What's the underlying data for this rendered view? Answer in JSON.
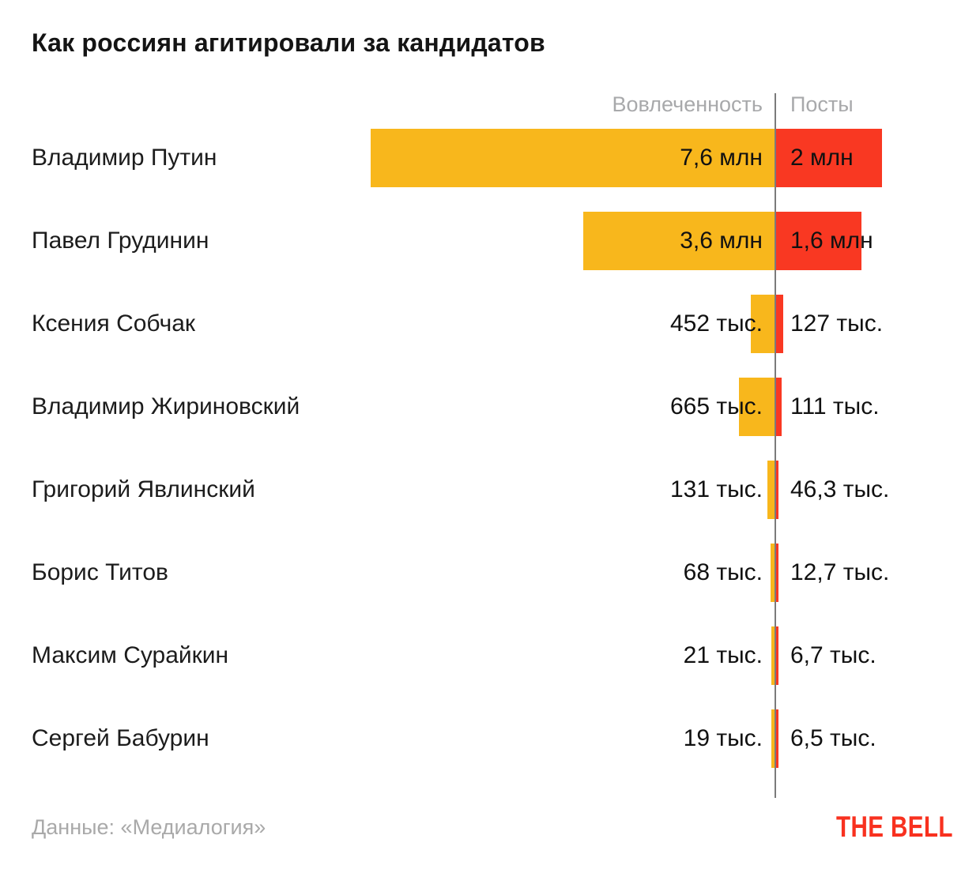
{
  "title": "Как россиян агитировали за кандидатов",
  "columns": {
    "left_label": "Вовлеченность",
    "right_label": "Посты"
  },
  "footer": {
    "source": "Данные: «Медиалогия»",
    "logo": "THE BELL"
  },
  "colors": {
    "engagement_bar": "#F8B71C",
    "posts_bar": "#F93822",
    "divider": "#7b7b7b",
    "header_text": "#a8a9ab",
    "logo_red": "#F8311F"
  },
  "chart_data": {
    "type": "bar",
    "orientation": "bidirectional-horizontal",
    "title": "Как россиян агитировали за кандидатов",
    "unit": "thousands",
    "legend_position": "top",
    "grid": false,
    "series": [
      {
        "name": "Вовлеченность",
        "side": "left",
        "color": "#F8B71C"
      },
      {
        "name": "Посты",
        "side": "right",
        "color": "#F93822"
      }
    ],
    "rows": [
      {
        "candidate": "Владимир Путин",
        "engagement_k": 7600,
        "engagement_label": "7,6 млн",
        "posts_k": 2000,
        "posts_label": "2 млн"
      },
      {
        "candidate": "Павел Грудинин",
        "engagement_k": 3600,
        "engagement_label": "3,6 млн",
        "posts_k": 1600,
        "posts_label": "1,6 млн"
      },
      {
        "candidate": "Ксения Собчак",
        "engagement_k": 452,
        "engagement_label": "452 тыс.",
        "posts_k": 127,
        "posts_label": "127 тыс."
      },
      {
        "candidate": "Владимир Жириновский",
        "engagement_k": 665,
        "engagement_label": "665 тыс.",
        "posts_k": 111,
        "posts_label": "111 тыс."
      },
      {
        "candidate": "Григорий Явлинский",
        "engagement_k": 131,
        "engagement_label": "131 тыс.",
        "posts_k": 46.3,
        "posts_label": "46,3 тыс."
      },
      {
        "candidate": "Борис Титов",
        "engagement_k": 68,
        "engagement_label": "68 тыс.",
        "posts_k": 12.7,
        "posts_label": "12,7 тыс."
      },
      {
        "candidate": "Максим Сурайкин",
        "engagement_k": 21,
        "engagement_label": "21 тыс.",
        "posts_k": 6.7,
        "posts_label": "6,7 тыс."
      },
      {
        "candidate": "Сергей Бабурин",
        "engagement_k": 19,
        "engagement_label": "19 тыс.",
        "posts_k": 6.5,
        "posts_label": "6,5 тыс."
      }
    ]
  }
}
